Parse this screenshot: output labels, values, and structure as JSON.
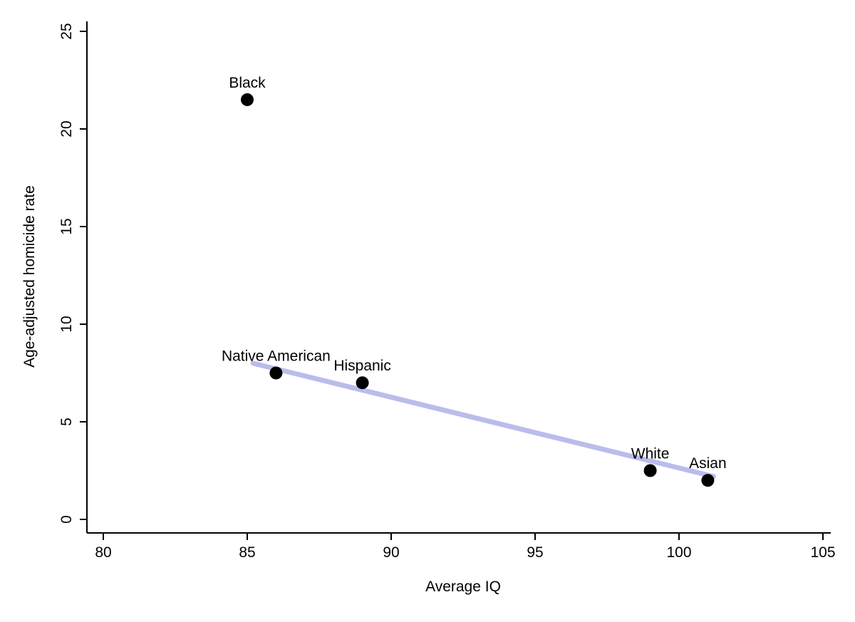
{
  "chart_data": {
    "type": "scatter",
    "title": "",
    "xlabel": "Average IQ",
    "ylabel": "Age-adjusted homicide rate",
    "xlim": [
      80,
      105
    ],
    "ylim": [
      0,
      25
    ],
    "xticks": [
      "80",
      "85",
      "90",
      "95",
      "100",
      "105"
    ],
    "xtick_values": [
      80,
      85,
      90,
      95,
      100,
      105
    ],
    "yticks": [
      "0",
      "5",
      "10",
      "15",
      "20",
      "25"
    ],
    "ytick_values": [
      0,
      5,
      10,
      15,
      20,
      25
    ],
    "grid": false,
    "legend": "none",
    "point_color": "#000000",
    "point_radius": 9,
    "points": [
      {
        "label": "Black",
        "x": 85,
        "y": 21.5
      },
      {
        "label": "Native American",
        "x": 86,
        "y": 7.5
      },
      {
        "label": "Hispanic",
        "x": 89,
        "y": 7
      },
      {
        "label": "White",
        "x": 99,
        "y": 2.5
      },
      {
        "label": "Asian",
        "x": 101,
        "y": 2
      }
    ],
    "fit_line": {
      "x1": 85.2,
      "y1": 8.0,
      "x2": 101.2,
      "y2": 2.2,
      "color": "#b9bdec",
      "width": 7
    }
  }
}
